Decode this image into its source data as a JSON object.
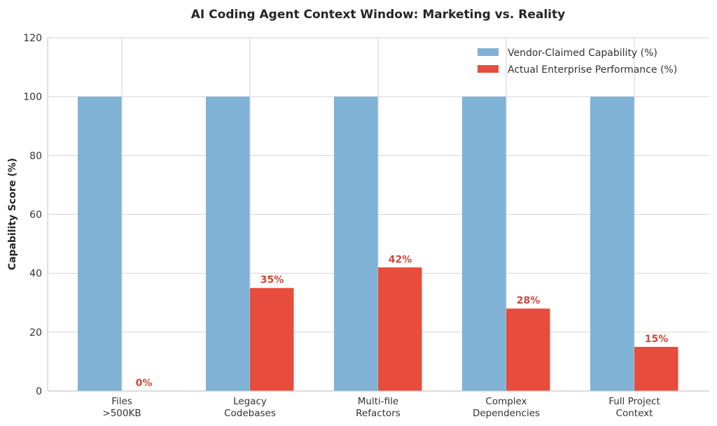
{
  "chart_data": {
    "type": "bar",
    "title": "AI Coding Agent Context Window: Marketing vs. Reality",
    "xlabel": "",
    "ylabel": "Capability Score (%)",
    "ylim": [
      0,
      120
    ],
    "yticks": [
      0,
      20,
      40,
      60,
      80,
      100,
      120
    ],
    "grid": true,
    "legend_position": "upper right",
    "categories": [
      [
        "Files",
        ">500KB"
      ],
      [
        "Legacy",
        "Codebases"
      ],
      [
        "Multi-file",
        "Refactors"
      ],
      [
        "Complex",
        "Dependencies"
      ],
      [
        "Full Project",
        "Context"
      ]
    ],
    "series": [
      {
        "name": "Vendor-Claimed Capability (%)",
        "color": "#7fb2d5",
        "values": [
          100,
          100,
          100,
          100,
          100
        ],
        "show_labels": false
      },
      {
        "name": "Actual Enterprise Performance (%)",
        "color": "#e74c3c",
        "values": [
          0,
          35,
          42,
          28,
          15
        ],
        "show_labels": true,
        "label_color": "#d0473b",
        "label_suffix": "%"
      }
    ]
  }
}
